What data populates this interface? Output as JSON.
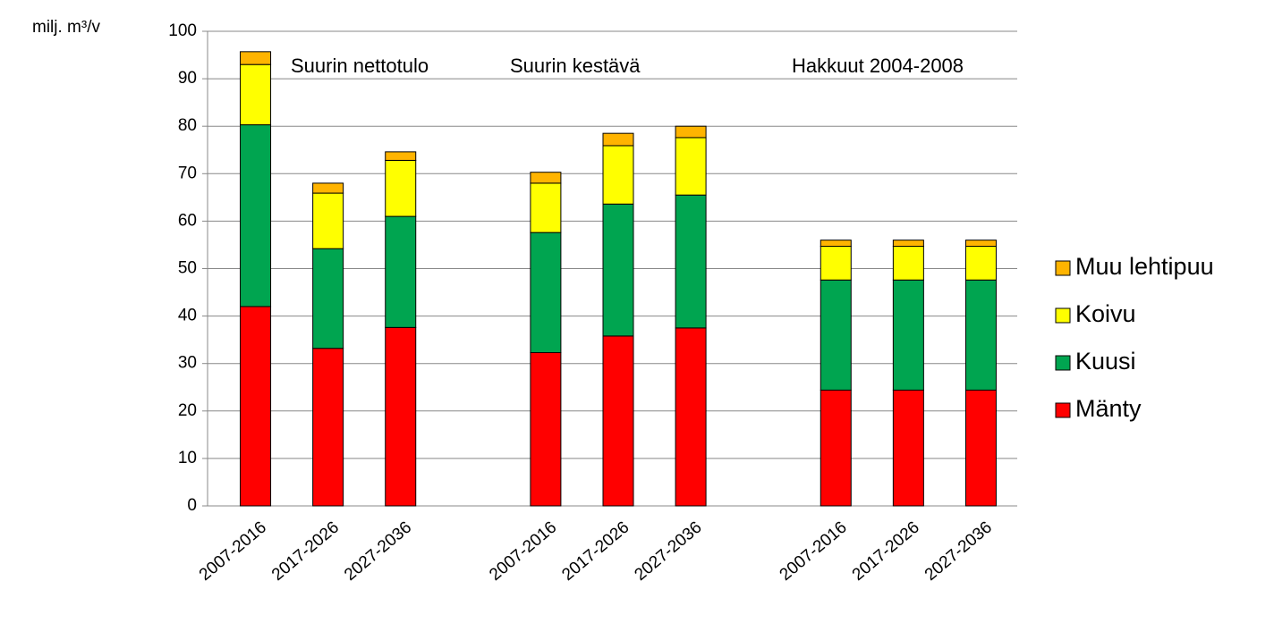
{
  "chart_data": {
    "type": "stacked_bar",
    "y_label": "milj. m³/v",
    "annotations": [
      "Suurin nettotulo",
      "Suurin kestävä",
      "Hakkuut 2004-2008"
    ],
    "categories": [
      "2007-2016",
      "2017-2026",
      "2027-2036",
      null,
      "2007-2016",
      "2017-2026",
      "2027-2036",
      null,
      "2007-2016",
      "2017-2026",
      "2027-2036"
    ],
    "series": [
      {
        "name": "Mänty",
        "color": "#ff0000",
        "values": [
          42,
          33.2,
          37.6,
          null,
          32.3,
          35.8,
          37.5,
          null,
          24.4,
          24.4,
          24.4
        ]
      },
      {
        "name": "Kuusi",
        "color": "#00a550",
        "values": [
          38.3,
          21,
          23.4,
          null,
          25.3,
          27.8,
          28,
          null,
          23.2,
          23.2,
          23.2
        ]
      },
      {
        "name": "Koivu",
        "color": "#ffff00",
        "values": [
          12.7,
          11.7,
          11.8,
          null,
          10.4,
          12.3,
          12.1,
          null,
          7.1,
          7.1,
          7.1
        ]
      },
      {
        "name": "Muu lehtipuu",
        "color": "#ffb400",
        "values": [
          2.7,
          2.1,
          1.8,
          null,
          2.3,
          2.6,
          2.4,
          null,
          1.3,
          1.3,
          1.3
        ]
      }
    ],
    "ylim": [
      0,
      100
    ],
    "yticks": [
      0,
      10,
      20,
      30,
      40,
      50,
      60,
      70,
      80,
      90,
      100
    ],
    "grid": true,
    "legend": "right"
  }
}
